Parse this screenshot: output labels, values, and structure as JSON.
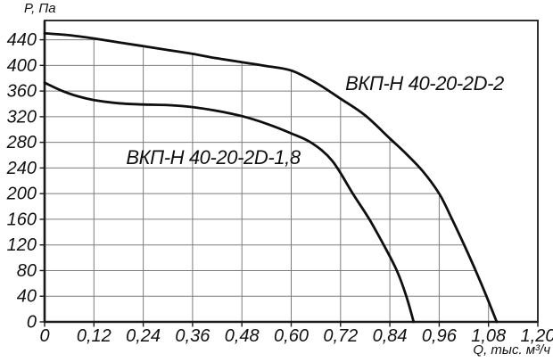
{
  "chart_data": {
    "type": "line",
    "title": "",
    "xlabel": "Q, тыс. м³/ч",
    "ylabel": "P, Па",
    "xlim": [
      0,
      1.2
    ],
    "ylim": [
      0,
      470
    ],
    "grid": true,
    "grid_note": "gridlines drawn only in region under the upper curve",
    "legend_position": "labels-on-chart",
    "x_ticks": [
      {
        "v": 0,
        "label": "0"
      },
      {
        "v": 0.12,
        "label": "0,12"
      },
      {
        "v": 0.24,
        "label": "0,24"
      },
      {
        "v": 0.36,
        "label": "0,36"
      },
      {
        "v": 0.48,
        "label": "0,48"
      },
      {
        "v": 0.6,
        "label": "0,60"
      },
      {
        "v": 0.72,
        "label": "0,72"
      },
      {
        "v": 0.84,
        "label": "0,84"
      },
      {
        "v": 0.96,
        "label": "0,96"
      },
      {
        "v": 1.08,
        "label": "1,08"
      },
      {
        "v": 1.2,
        "label": "1,20"
      }
    ],
    "y_ticks": [
      {
        "v": 0,
        "label": "0"
      },
      {
        "v": 40,
        "label": "40"
      },
      {
        "v": 80,
        "label": "80"
      },
      {
        "v": 120,
        "label": "120"
      },
      {
        "v": 160,
        "label": "160"
      },
      {
        "v": 200,
        "label": "200"
      },
      {
        "v": 240,
        "label": "240"
      },
      {
        "v": 280,
        "label": "280"
      },
      {
        "v": 320,
        "label": "320"
      },
      {
        "v": 360,
        "label": "360"
      },
      {
        "v": 400,
        "label": "400"
      },
      {
        "v": 440,
        "label": "440"
      }
    ],
    "series": [
      {
        "name": "ВКП-Н 40-20-2D-2",
        "points": [
          [
            0,
            450
          ],
          [
            0.06,
            447
          ],
          [
            0.12,
            442
          ],
          [
            0.18,
            436
          ],
          [
            0.24,
            430
          ],
          [
            0.3,
            424
          ],
          [
            0.36,
            418
          ],
          [
            0.42,
            411
          ],
          [
            0.48,
            405
          ],
          [
            0.54,
            399
          ],
          [
            0.6,
            392
          ],
          [
            0.66,
            373
          ],
          [
            0.72,
            348
          ],
          [
            0.78,
            322
          ],
          [
            0.84,
            286
          ],
          [
            0.88,
            262
          ],
          [
            0.92,
            235
          ],
          [
            0.96,
            200
          ],
          [
            0.99,
            162
          ],
          [
            1.02,
            121
          ],
          [
            1.05,
            78
          ],
          [
            1.075,
            40
          ],
          [
            1.1,
            0
          ]
        ]
      },
      {
        "name": "ВКП-Н 40-20-2D-1,8",
        "points": [
          [
            0,
            373
          ],
          [
            0.04,
            361
          ],
          [
            0.08,
            352
          ],
          [
            0.12,
            346
          ],
          [
            0.18,
            341
          ],
          [
            0.24,
            339
          ],
          [
            0.3,
            338
          ],
          [
            0.36,
            335
          ],
          [
            0.42,
            329
          ],
          [
            0.48,
            321
          ],
          [
            0.54,
            309
          ],
          [
            0.6,
            294
          ],
          [
            0.65,
            279
          ],
          [
            0.7,
            251
          ],
          [
            0.75,
            200
          ],
          [
            0.79,
            160
          ],
          [
            0.825,
            120
          ],
          [
            0.857,
            80
          ],
          [
            0.88,
            40
          ],
          [
            0.898,
            0
          ]
        ]
      }
    ],
    "colors": {
      "curve": "#0f0f0f",
      "grid": "#7d7d7d",
      "axis": "#1a1a1a",
      "text": "#111111",
      "background": "#ffffff"
    }
  }
}
